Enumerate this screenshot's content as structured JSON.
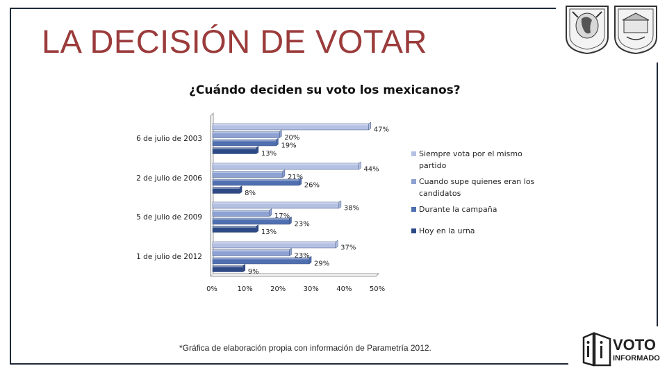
{
  "slide": {
    "title": "LA DECISIÓN DE VOTAR",
    "footnote": "*Gráfica de elaboración propia con información de Parametría 2012.",
    "logo_text": "VOTO iNFORMADO",
    "colors": {
      "title": "#9b3b3b",
      "frame": "#1f2a3a"
    }
  },
  "chart_data": {
    "type": "bar",
    "orientation": "horizontal",
    "title": "¿Cuándo deciden su voto los mexicanos?",
    "categories": [
      "6 de julio de 2003",
      "2 de julio de 2006",
      "5 de julio de 2009",
      "1 de julio de 2012"
    ],
    "series": [
      {
        "name": "Siempre vota por el mismo partido",
        "values": [
          47,
          44,
          38,
          37
        ],
        "color": "#b4c1e3",
        "legend_lines": [
          "Siempre vota por el mismo",
          "partido"
        ]
      },
      {
        "name": "Cuando supe quienes eran los candidatos",
        "values": [
          20,
          21,
          17,
          23
        ],
        "color": "#8da1d2",
        "legend_lines": [
          "Cuando supe quienes eran los",
          "candidatos"
        ]
      },
      {
        "name": "Durante la campaña",
        "values": [
          19,
          26,
          23,
          29
        ],
        "color": "#4f6fb0",
        "legend_lines": [
          "Durante la campaña"
        ]
      },
      {
        "name": "Hoy en la urna",
        "values": [
          13,
          8,
          13,
          9
        ],
        "color": "#2e4a86",
        "legend_lines": [
          "Hoy en la urna"
        ]
      }
    ],
    "data_labels": [
      [
        "47%",
        "20%",
        "19%",
        "13%"
      ],
      [
        "44%",
        "21%",
        "26%",
        "8%"
      ],
      [
        "38%",
        "17%",
        "23%",
        "13%"
      ],
      [
        "37%",
        "23%",
        "29%",
        "9%"
      ]
    ],
    "xticks": [
      "0%",
      "10%",
      "20%",
      "30%",
      "40%",
      "50%"
    ],
    "xlim": [
      0,
      50
    ],
    "grid": false,
    "legend_position": "right"
  }
}
